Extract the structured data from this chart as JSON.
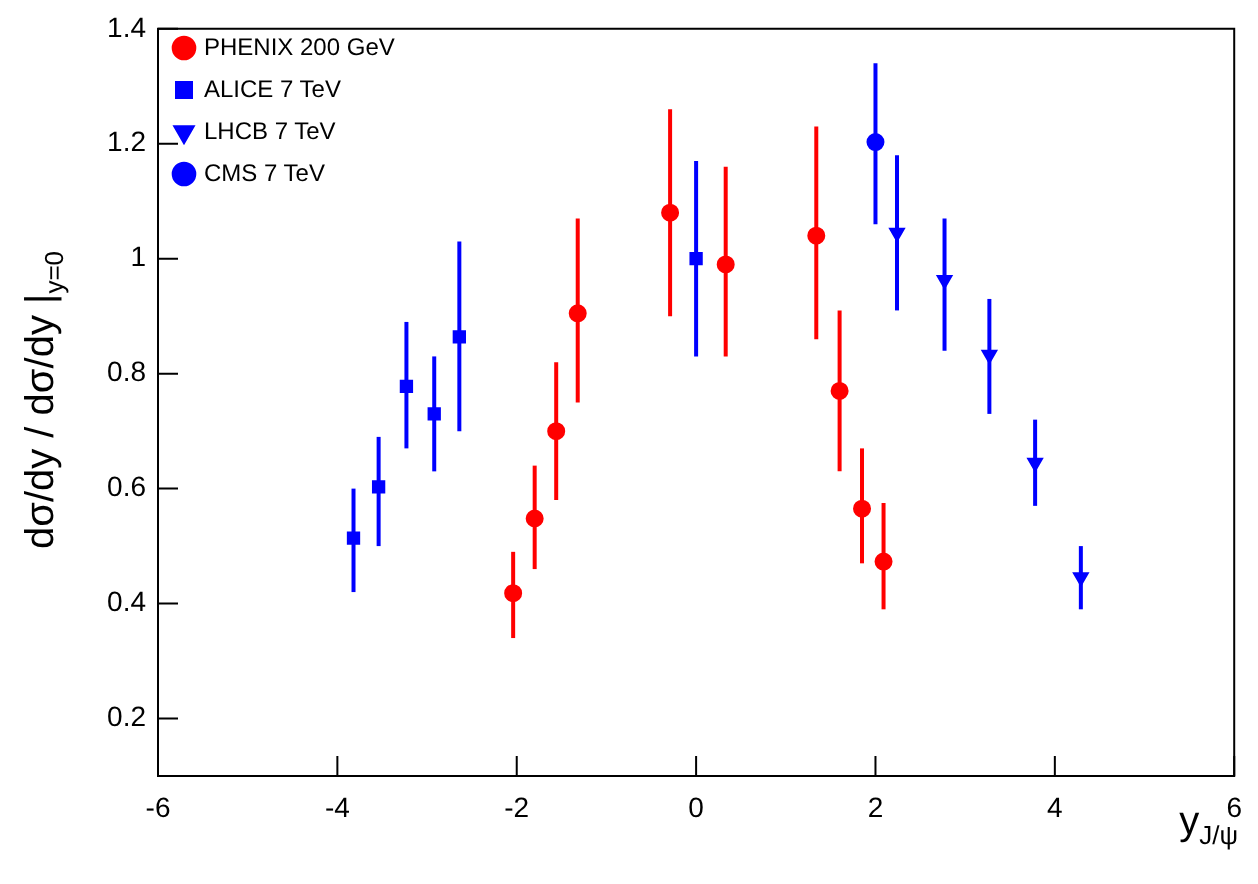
{
  "chart_data": {
    "type": "scatter",
    "xlabel": "y$_{J/ψ}$",
    "ylabel": "dσ/dy / dσ/dy |$_{y=0}$",
    "xlim": [
      -6,
      6
    ],
    "xticks": [
      -6,
      -4,
      -2,
      0,
      2,
      4,
      6
    ],
    "ylim": [
      0.1,
      1.4
    ],
    "yticks": [
      0.2,
      0.4,
      0.6,
      0.8,
      1,
      1.2,
      1.4
    ],
    "grid": false,
    "legend": "top left",
    "series": [
      {
        "name": "PHENIX 200 GeV",
        "color": "#ff0000",
        "marker": "circle",
        "x": [
          -2.04,
          -1.8,
          -1.56,
          -1.32,
          -0.29,
          0.33,
          1.34,
          1.6,
          1.85,
          2.09
        ],
        "values": [
          0.418,
          0.548,
          0.7,
          0.905,
          1.08,
          0.99,
          1.04,
          0.77,
          0.565,
          0.473
        ],
        "errors": [
          [
            0.34,
            0.49
          ],
          [
            0.46,
            0.64
          ],
          [
            0.58,
            0.82
          ],
          [
            0.75,
            1.07
          ],
          [
            0.9,
            1.26
          ],
          [
            0.83,
            1.16
          ],
          [
            0.86,
            1.23
          ],
          [
            0.63,
            0.91
          ],
          [
            0.47,
            0.67
          ],
          [
            0.39,
            0.575
          ]
        ]
      },
      {
        "name": "ALICE 7 TeV",
        "color": "#0000ff",
        "marker": "square",
        "x": [
          -3.82,
          -3.54,
          -3.23,
          -2.92,
          -2.64,
          0
        ],
        "values": [
          0.514,
          0.603,
          0.778,
          0.73,
          0.864,
          1.0
        ],
        "errors": [
          [
            0.42,
            0.6
          ],
          [
            0.5,
            0.69
          ],
          [
            0.67,
            0.89
          ],
          [
            0.63,
            0.83
          ],
          [
            0.7,
            1.03
          ],
          [
            0.83,
            1.17
          ]
        ]
      },
      {
        "name": "LHCB 7 TeV",
        "color": "#0000ff",
        "marker": "triangle",
        "x": [
          2.24,
          2.77,
          3.27,
          3.78,
          4.29
        ],
        "values": [
          1.045,
          0.963,
          0.833,
          0.645,
          0.446
        ],
        "errors": [
          [
            0.91,
            1.18
          ],
          [
            0.84,
            1.07
          ],
          [
            0.73,
            0.93
          ],
          [
            0.57,
            0.72
          ],
          [
            0.39,
            0.5
          ]
        ]
      },
      {
        "name": "CMS 7 TeV",
        "color": "#0000ff",
        "marker": "circle",
        "x": [
          2.0
        ],
        "values": [
          1.203
        ],
        "errors": [
          [
            1.06,
            1.34
          ]
        ]
      }
    ]
  }
}
